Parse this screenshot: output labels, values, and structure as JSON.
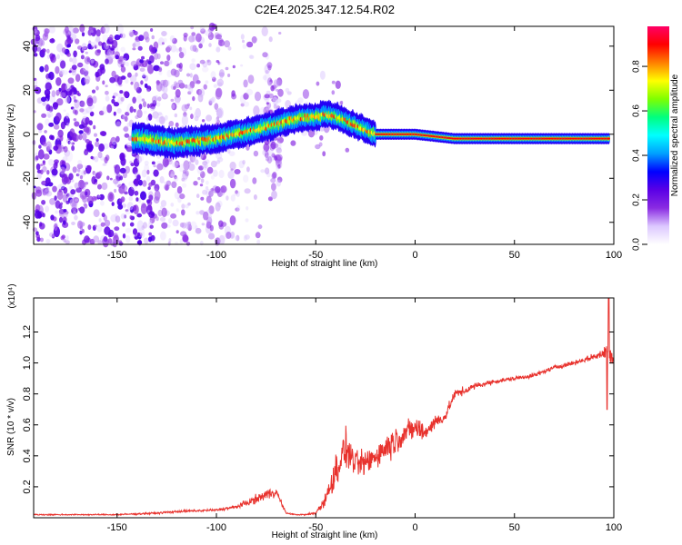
{
  "title": "C2E4.2025.347.12.54.R02",
  "chart_data": [
    {
      "type": "heatmap",
      "title": "",
      "xlabel": "Height of straight line (km)",
      "ylabel": "Frequency (Hz)",
      "xlim": [
        -192,
        100
      ],
      "ylim": [
        -50,
        49
      ],
      "xticks": [
        "-150",
        "-100",
        "-50",
        "0",
        "50",
        "100"
      ],
      "xtick_values": [
        -150,
        -100,
        -50,
        0,
        50,
        100
      ],
      "yticks": [
        "-40",
        "-20",
        "0",
        "20",
        "40"
      ],
      "ytick_values": [
        -40,
        -20,
        0,
        20,
        40
      ],
      "ridge": {
        "description": "dominant frequency trace",
        "x": [
          -140,
          -120,
          -100,
          -80,
          -60,
          -50,
          -45,
          -40,
          -30,
          -20,
          -10,
          0,
          20,
          50,
          98
        ],
        "y": [
          -2,
          -4,
          -2,
          2,
          7,
          8,
          9,
          8,
          4,
          0,
          0,
          0,
          -2,
          -2,
          -2
        ]
      },
      "colorbar": {
        "label": "Normalized spectral amplitude",
        "range": [
          0.0,
          0.98
        ],
        "ticks": [
          "0.0",
          "0.2",
          "0.4",
          "0.6",
          "0.8"
        ],
        "tick_values": [
          0.0,
          0.2,
          0.4,
          0.6,
          0.8
        ],
        "colormap": [
          "#ffffff",
          "#dcc8ff",
          "#8a2be2",
          "#5a00e6",
          "#0000ff",
          "#00a0ff",
          "#00ffff",
          "#00ff7f",
          "#7fff00",
          "#ffff00",
          "#ff8000",
          "#ff0000",
          "#ff0066"
        ]
      },
      "colors": {
        "scatter": "#8a2be2",
        "ridge_core": "#ff0000"
      }
    },
    {
      "type": "line",
      "title": "",
      "xlabel": "Height of straight line (km)",
      "ylabel": "SNR (10 * v/v)",
      "scale_label": "(x10⁴)",
      "xlim": [
        -192,
        100
      ],
      "ylim": [
        0,
        1.42
      ],
      "xticks": [
        "-150",
        "-100",
        "-50",
        "0",
        "50",
        "100"
      ],
      "xtick_values": [
        -150,
        -100,
        -50,
        0,
        50,
        100
      ],
      "yticks": [
        "0.2",
        "0.4",
        "0.6",
        "0.8",
        "1.0",
        "1.2"
      ],
      "ytick_values": [
        0.2,
        0.4,
        0.6,
        0.8,
        1.0,
        1.2
      ],
      "series": [
        {
          "name": "SNR",
          "color": "#e8322d",
          "x": [
            -192,
            -150,
            -130,
            -120,
            -100,
            -90,
            -80,
            -75,
            -70,
            -65,
            -60,
            -55,
            -50,
            -45,
            -40,
            -35,
            -30,
            -25,
            -20,
            -15,
            -10,
            -5,
            0,
            5,
            10,
            15,
            20,
            25,
            30,
            40,
            50,
            60,
            70,
            80,
            90,
            95,
            97,
            98,
            99,
            100
          ],
          "y": [
            0.02,
            0.02,
            0.03,
            0.04,
            0.05,
            0.07,
            0.12,
            0.15,
            0.17,
            0.03,
            0.02,
            0.02,
            0.03,
            0.12,
            0.3,
            0.45,
            0.35,
            0.35,
            0.4,
            0.45,
            0.5,
            0.55,
            0.58,
            0.55,
            0.62,
            0.65,
            0.8,
            0.82,
            0.85,
            0.88,
            0.9,
            0.92,
            0.97,
            1.0,
            1.04,
            1.06,
            1.1,
            1.12,
            1.05,
            1.0
          ],
          "noise_amplitude": [
            0.006,
            0.006,
            0.01,
            0.01,
            0.012,
            0.02,
            0.04,
            0.05,
            0.05,
            0.006,
            0.006,
            0.006,
            0.02,
            0.06,
            0.16,
            0.18,
            0.12,
            0.12,
            0.12,
            0.13,
            0.14,
            0.1,
            0.12,
            0.08,
            0.07,
            0.05,
            0.04,
            0.04,
            0.03,
            0.02,
            0.02,
            0.02,
            0.02,
            0.02,
            0.03,
            0.04,
            0.2,
            0.3,
            0.06,
            0.03
          ]
        }
      ]
    }
  ]
}
